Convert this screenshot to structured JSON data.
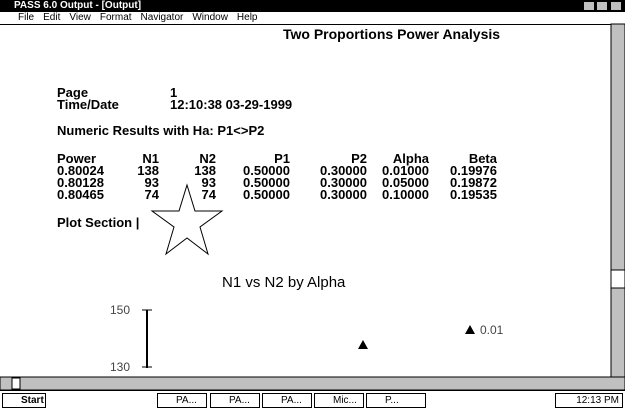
{
  "window": {
    "title": "PASS 6.0 Output - [Output]"
  },
  "menu": [
    "File",
    "Edit",
    "View",
    "Format",
    "Navigator",
    "Window",
    "Help"
  ],
  "document": {
    "heading": "Two Proportions Power Analysis",
    "page_label": "Page",
    "page_value": "1",
    "time_label": "Time/Date",
    "time_value": "12:10:38 03-29-1999",
    "section": "Numeric Results with Ha: P1<>P2",
    "table": {
      "header": [
        "Power",
        "N1",
        "N2",
        "P1",
        "P2",
        "Alpha",
        "Beta"
      ],
      "rows": [
        [
          "0.80024",
          "138",
          "138",
          "0.50000",
          "0.30000",
          "0.01000",
          "0.19976"
        ],
        [
          "0.80128",
          "93",
          "93",
          "0.50000",
          "0.30000",
          "0.05000",
          "0.19872"
        ],
        [
          "0.80465",
          "74",
          "74",
          "0.50000",
          "0.30000",
          "0.10000",
          "0.19535"
        ]
      ]
    },
    "plot_section": "Plot Section |",
    "plot": {
      "title": "N1 vs N2 by Alpha",
      "yticks": [
        "150",
        "130"
      ],
      "legend": "0.01"
    }
  },
  "taskbar": {
    "start": "Start",
    "buttons": [
      "PA...",
      "PA...",
      "PA...",
      "Mic...",
      "P..."
    ],
    "clock": "12:13 PM"
  }
}
